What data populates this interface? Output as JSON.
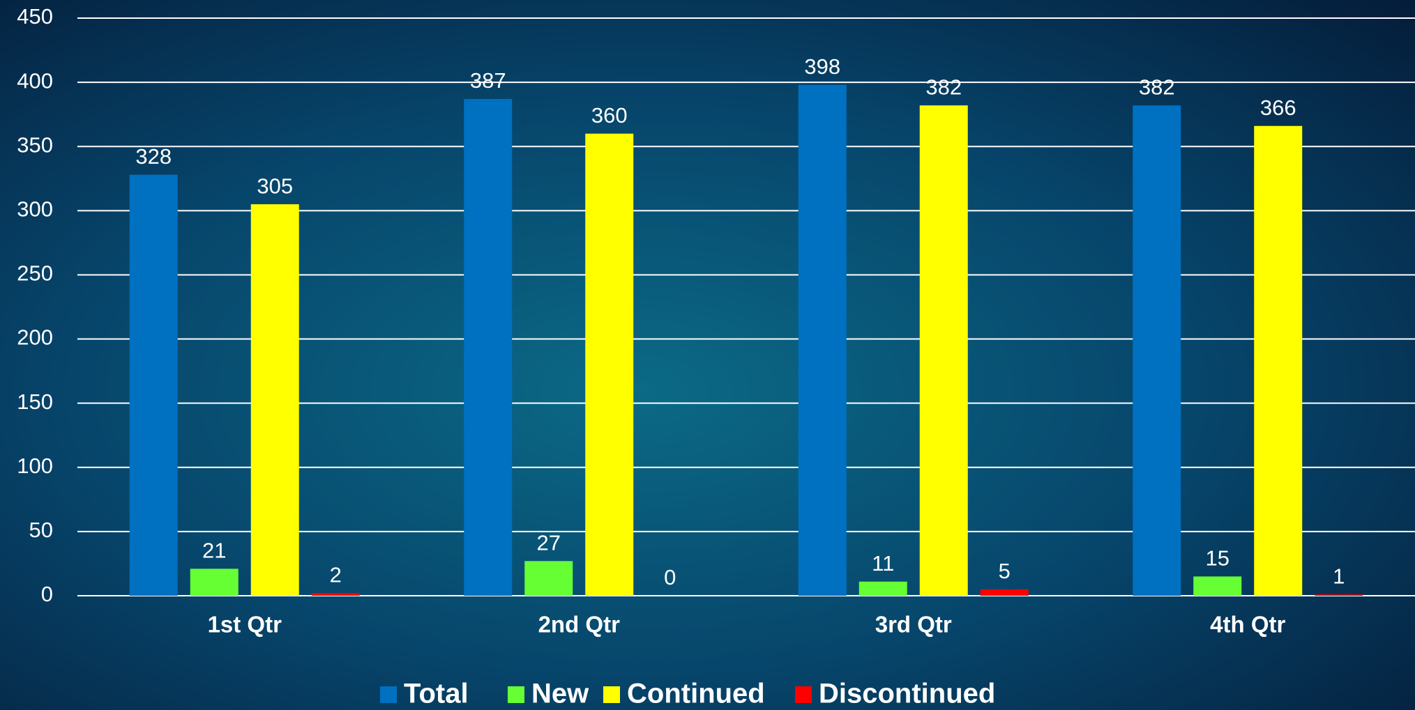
{
  "chart_data": {
    "type": "bar",
    "categories": [
      "1st Qtr",
      "2nd Qtr",
      "3rd Qtr",
      "4th Qtr"
    ],
    "series": [
      {
        "name": "Total",
        "color": "#0070c0",
        "values": [
          328,
          387,
          398,
          382
        ]
      },
      {
        "name": "New",
        "color": "#66ff33",
        "values": [
          21,
          27,
          11,
          15
        ]
      },
      {
        "name": "Continued",
        "color": "#ffff00",
        "values": [
          305,
          360,
          382,
          366
        ]
      },
      {
        "name": "Discontinued",
        "color": "#ff0000",
        "values": [
          2,
          0,
          5,
          1
        ]
      }
    ],
    "ylim": [
      0,
      450
    ],
    "yticks": [
      0,
      50,
      100,
      150,
      200,
      250,
      300,
      350,
      400,
      450
    ],
    "grid": true,
    "legend": "bottom"
  }
}
